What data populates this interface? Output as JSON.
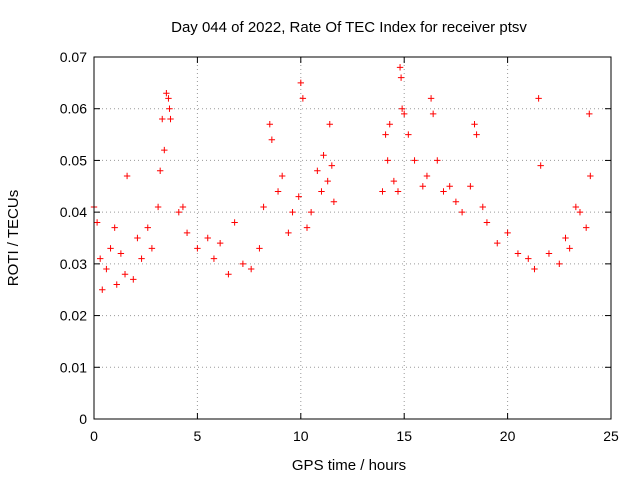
{
  "chart_data": {
    "type": "scatter",
    "title": "Day 044 of 2022, Rate Of TEC Index for receiver ptsv",
    "xlabel": "GPS time / hours",
    "ylabel": "ROTI / TECUs",
    "xlim": [
      0,
      25
    ],
    "ylim": [
      0,
      0.07
    ],
    "x_ticks": [
      "0",
      "5",
      "10",
      "15",
      "20",
      "25"
    ],
    "y_ticks": [
      "0",
      "0.01",
      "0.02",
      "0.03",
      "0.04",
      "0.05",
      "0.06",
      "0.07"
    ],
    "grid": true,
    "marker": "plus",
    "color": "#ff0000",
    "data_gap": [
      11.7,
      13.9
    ],
    "series": [
      {
        "points": [
          [
            0.0,
            0.041
          ],
          [
            0.15,
            0.038
          ],
          [
            0.3,
            0.031
          ],
          [
            0.4,
            0.025
          ],
          [
            0.6,
            0.029
          ],
          [
            0.8,
            0.033
          ],
          [
            1.0,
            0.037
          ],
          [
            1.1,
            0.026
          ],
          [
            1.3,
            0.032
          ],
          [
            1.5,
            0.028
          ],
          [
            1.6,
            0.047
          ],
          [
            1.9,
            0.027
          ],
          [
            2.1,
            0.035
          ],
          [
            2.3,
            0.031
          ],
          [
            2.6,
            0.037
          ],
          [
            2.8,
            0.033
          ],
          [
            3.1,
            0.041
          ],
          [
            3.2,
            0.048
          ],
          [
            3.3,
            0.058
          ],
          [
            3.4,
            0.052
          ],
          [
            3.5,
            0.063
          ],
          [
            3.6,
            0.062
          ],
          [
            3.65,
            0.06
          ],
          [
            3.7,
            0.058
          ],
          [
            4.1,
            0.04
          ],
          [
            4.3,
            0.041
          ],
          [
            4.5,
            0.036
          ],
          [
            5.0,
            0.033
          ],
          [
            5.5,
            0.035
          ],
          [
            5.8,
            0.031
          ],
          [
            6.1,
            0.034
          ],
          [
            6.5,
            0.028
          ],
          [
            6.8,
            0.038
          ],
          [
            7.2,
            0.03
          ],
          [
            7.6,
            0.029
          ],
          [
            8.0,
            0.033
          ],
          [
            8.2,
            0.041
          ],
          [
            8.5,
            0.057
          ],
          [
            8.6,
            0.054
          ],
          [
            8.9,
            0.044
          ],
          [
            9.1,
            0.047
          ],
          [
            9.4,
            0.036
          ],
          [
            9.6,
            0.04
          ],
          [
            9.9,
            0.043
          ],
          [
            10.0,
            0.065
          ],
          [
            10.1,
            0.062
          ],
          [
            10.3,
            0.037
          ],
          [
            10.5,
            0.04
          ],
          [
            10.8,
            0.048
          ],
          [
            11.0,
            0.044
          ],
          [
            11.1,
            0.051
          ],
          [
            11.3,
            0.046
          ],
          [
            11.4,
            0.057
          ],
          [
            11.5,
            0.049
          ],
          [
            11.6,
            0.042
          ],
          [
            13.95,
            0.044
          ],
          [
            14.1,
            0.055
          ],
          [
            14.2,
            0.05
          ],
          [
            14.3,
            0.057
          ],
          [
            14.5,
            0.046
          ],
          [
            14.7,
            0.044
          ],
          [
            14.8,
            0.068
          ],
          [
            14.85,
            0.066
          ],
          [
            14.9,
            0.06
          ],
          [
            15.0,
            0.059
          ],
          [
            15.2,
            0.055
          ],
          [
            15.5,
            0.05
          ],
          [
            15.9,
            0.045
          ],
          [
            16.1,
            0.047
          ],
          [
            16.3,
            0.062
          ],
          [
            16.4,
            0.059
          ],
          [
            16.6,
            0.05
          ],
          [
            16.9,
            0.044
          ],
          [
            17.2,
            0.045
          ],
          [
            17.5,
            0.042
          ],
          [
            17.8,
            0.04
          ],
          [
            18.2,
            0.045
          ],
          [
            18.4,
            0.057
          ],
          [
            18.5,
            0.055
          ],
          [
            18.8,
            0.041
          ],
          [
            19.0,
            0.038
          ],
          [
            19.5,
            0.034
          ],
          [
            20.0,
            0.036
          ],
          [
            20.5,
            0.032
          ],
          [
            21.0,
            0.031
          ],
          [
            21.3,
            0.029
          ],
          [
            21.5,
            0.062
          ],
          [
            21.6,
            0.049
          ],
          [
            22.0,
            0.032
          ],
          [
            22.5,
            0.03
          ],
          [
            22.8,
            0.035
          ],
          [
            23.0,
            0.033
          ],
          [
            23.3,
            0.041
          ],
          [
            23.5,
            0.04
          ],
          [
            23.8,
            0.037
          ],
          [
            23.95,
            0.059
          ],
          [
            24.0,
            0.047
          ]
        ]
      }
    ]
  }
}
